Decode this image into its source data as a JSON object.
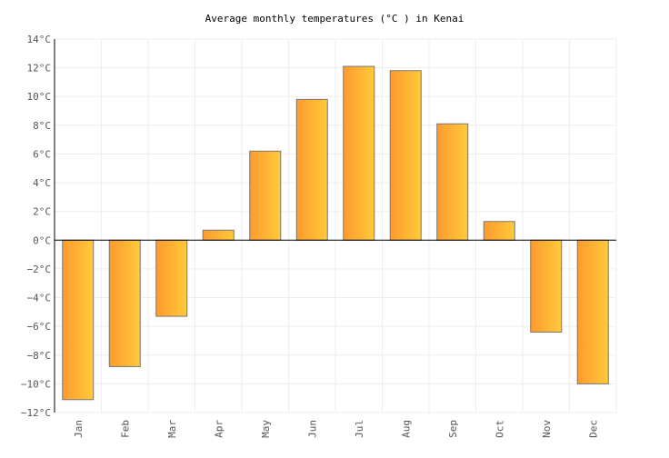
{
  "chart_data": {
    "type": "bar",
    "title": "Average monthly temperatures (°C ) in Kenai",
    "xlabel": "",
    "ylabel": "",
    "categories": [
      "Jan",
      "Feb",
      "Mar",
      "Apr",
      "May",
      "Jun",
      "Jul",
      "Aug",
      "Sep",
      "Oct",
      "Nov",
      "Dec"
    ],
    "values": [
      -11.1,
      -8.8,
      -5.3,
      0.7,
      6.2,
      9.8,
      12.1,
      11.8,
      8.1,
      1.3,
      -6.4,
      -10.0
    ],
    "ylim": [
      -12,
      14
    ],
    "yticks": [
      -12,
      -10,
      -8,
      -6,
      -4,
      -2,
      0,
      2,
      4,
      6,
      8,
      10,
      12,
      14
    ],
    "ytick_labels": [
      "−12°C",
      "−10°C",
      "−8°C",
      "−6°C",
      "−4°C",
      "−2°C",
      "0°C",
      "2°C",
      "4°C",
      "6°C",
      "8°C",
      "10°C",
      "12°C",
      "14°C"
    ],
    "grid": true,
    "legend": "none",
    "colors": {
      "bar_start": "#ff9a2e",
      "bar_end": "#ffca3a",
      "bar_stroke": "#777777",
      "grid": "#eeeeee"
    }
  }
}
